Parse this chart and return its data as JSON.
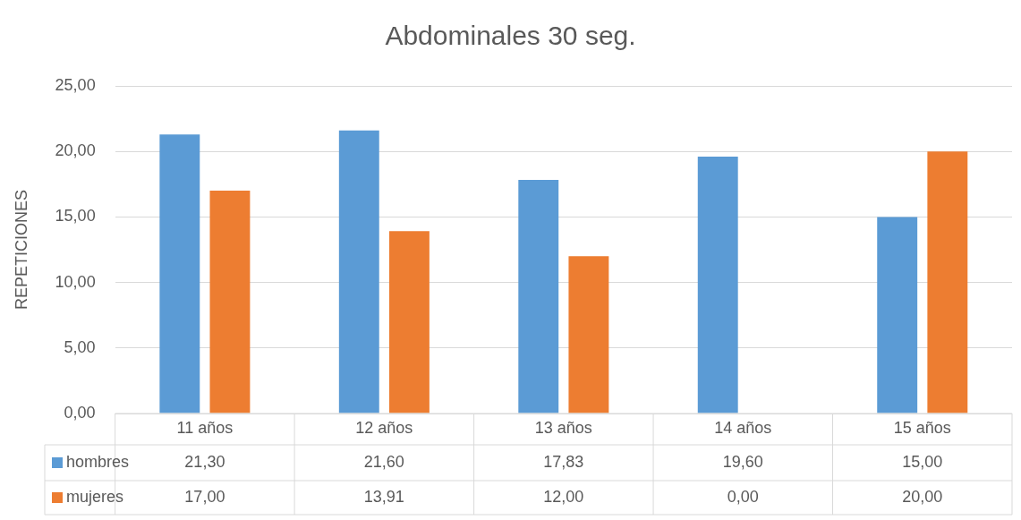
{
  "chart_data": {
    "type": "bar",
    "title": "Abdominales 30 seg.",
    "ylabel": "REPETICIONES",
    "categories": [
      "11 años",
      "12 años",
      "13 años",
      "14 años",
      "15 años"
    ],
    "series": [
      {
        "name": "hombres",
        "color": "#5b9bd5",
        "values": [
          21.3,
          21.6,
          17.83,
          19.6,
          15.0
        ],
        "value_labels": [
          "21,30",
          "21,60",
          "17,83",
          "19,60",
          "15,00"
        ]
      },
      {
        "name": "mujeres",
        "color": "#ed7d31",
        "values": [
          17.0,
          13.91,
          12.0,
          0.0,
          20.0
        ],
        "value_labels": [
          "17,00",
          "13,91",
          "12,00",
          "0,00",
          "20,00"
        ]
      }
    ],
    "ylim": [
      0,
      25
    ],
    "yticks": [
      {
        "value": 0,
        "label": "0,00"
      },
      {
        "value": 5,
        "label": "5,00"
      },
      {
        "value": 10,
        "label": "10,00"
      },
      {
        "value": 15,
        "label": "15,00"
      },
      {
        "value": 20,
        "label": "20,00"
      },
      {
        "value": 25,
        "label": "25,00"
      }
    ],
    "grid": "y",
    "legend": "bottom"
  }
}
